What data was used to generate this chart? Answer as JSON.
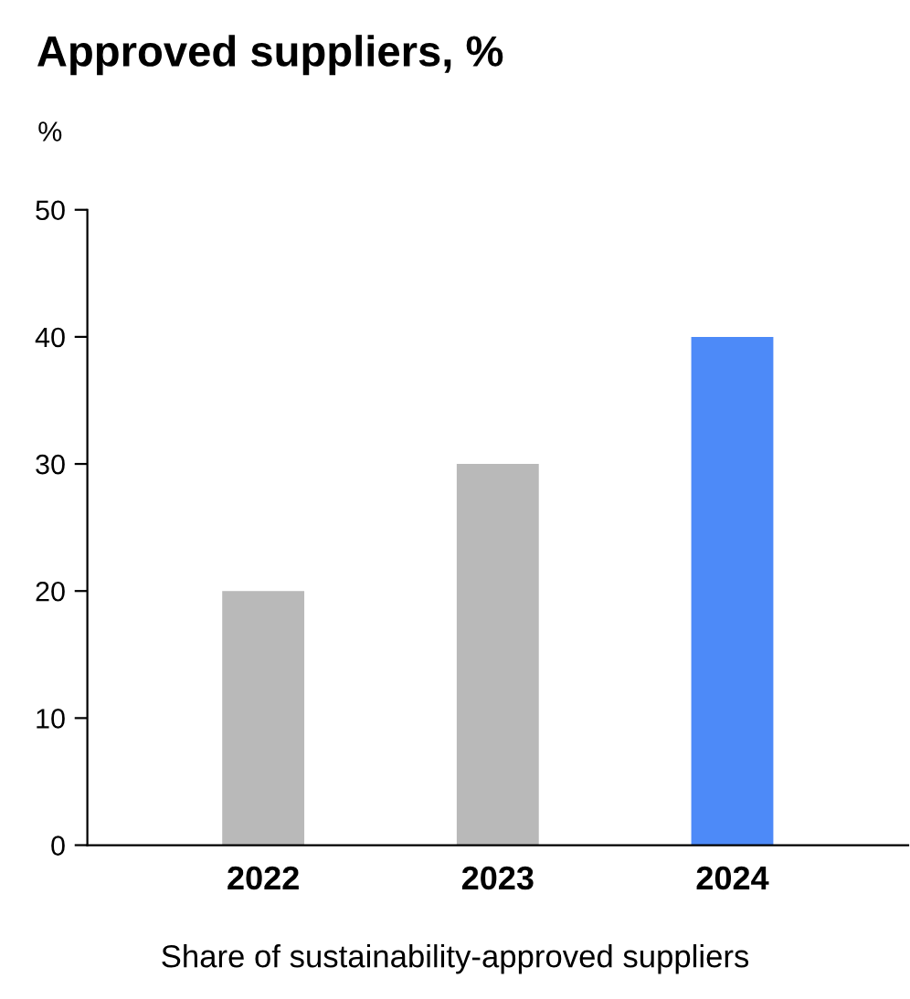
{
  "chart_data": {
    "type": "bar",
    "title": "Approved suppliers, %",
    "ylabel": "%",
    "xlabel": "Share of sustainability-approved suppliers",
    "categories": [
      "2022",
      "2023",
      "2024"
    ],
    "values": [
      20,
      30,
      40
    ],
    "colors": [
      "#b9b9b9",
      "#b9b9b9",
      "#4d8af8"
    ],
    "ylim": [
      0,
      50
    ],
    "yticks": [
      0,
      10,
      20,
      30,
      40,
      50
    ],
    "grid": false
  }
}
